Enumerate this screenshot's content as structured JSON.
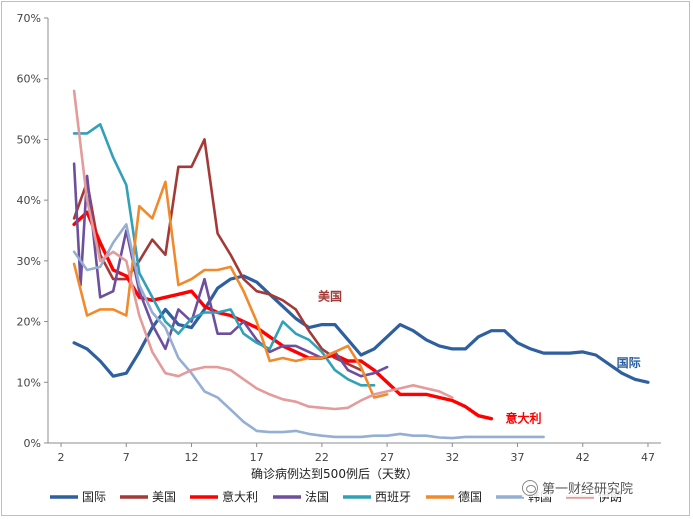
{
  "chart_data": {
    "type": "line",
    "title": "",
    "xlabel": "确诊病例达到500例后（天数）",
    "ylabel": "",
    "xlim": [
      1,
      48
    ],
    "ylim": [
      0,
      70
    ],
    "xticks": [
      2,
      7,
      12,
      17,
      22,
      27,
      32,
      37,
      42,
      47
    ],
    "yticks": [
      0,
      10,
      20,
      30,
      40,
      50,
      60,
      70
    ],
    "ytick_suffix": "%",
    "grid": false,
    "legend_position": "bottom",
    "series": [
      {
        "name": "国际",
        "color": "#2e5f9e",
        "width": 3.2,
        "label": "国际",
        "label_color": "#2e5f9e",
        "x": [
          3,
          4,
          5,
          6,
          7,
          8,
          9,
          10,
          11,
          12,
          13,
          14,
          15,
          16,
          17,
          18,
          19,
          20,
          21,
          22,
          23,
          24,
          25,
          26,
          27,
          28,
          29,
          30,
          31,
          32,
          33,
          34,
          35,
          36,
          37,
          38,
          39,
          40,
          41,
          42,
          43,
          44,
          45,
          46,
          47
        ],
        "y": [
          16.5,
          15.5,
          13.5,
          11,
          11.5,
          15,
          19,
          22,
          19.5,
          19,
          22,
          25.5,
          27,
          27.5,
          26.5,
          24.5,
          22.5,
          20.5,
          19,
          19.5,
          19.5,
          17,
          14.5,
          15.5,
          17.5,
          19.5,
          18.5,
          17,
          16,
          15.5,
          15.5,
          17.5,
          18.5,
          18.5,
          16.5,
          15.5,
          14.8,
          14.8,
          14.8,
          15,
          14.5,
          13,
          11.5,
          10.5,
          10
        ]
      },
      {
        "name": "美国",
        "color": "#a33a37",
        "width": 2.6,
        "label": "美国",
        "label_color": "#a33a37",
        "x": [
          3,
          4,
          5,
          6,
          7,
          8,
          9,
          10,
          11,
          12,
          13,
          14,
          15,
          16,
          17,
          18,
          19,
          20,
          21,
          22,
          23,
          24,
          25
        ],
        "y": [
          37,
          43,
          31,
          27,
          27,
          30,
          33.5,
          31,
          45.5,
          45.5,
          50,
          34.5,
          31,
          27,
          25,
          24.5,
          23.5,
          22,
          18.5,
          15.5,
          14,
          13,
          12
        ]
      },
      {
        "name": "意大利",
        "color": "#ff0000",
        "width": 3.4,
        "label": "意大利",
        "label_color": "#ff0000",
        "x": [
          3,
          4,
          5,
          6,
          7,
          8,
          9,
          10,
          11,
          12,
          13,
          14,
          15,
          16,
          17,
          18,
          19,
          20,
          21,
          22,
          23,
          24,
          25,
          26,
          27,
          28,
          29,
          30,
          31,
          32,
          33,
          34,
          35
        ],
        "y": [
          36,
          38,
          33,
          28.5,
          27.5,
          24,
          23.5,
          24,
          24.5,
          25,
          22.5,
          21.5,
          21,
          20,
          19,
          17.5,
          16,
          15,
          14,
          14,
          14.5,
          13.5,
          13.5,
          12,
          10,
          8,
          8,
          8,
          7.5,
          7,
          6,
          4.5,
          4
        ]
      },
      {
        "name": "法国",
        "color": "#6d4f9e",
        "width": 2.6,
        "label": null,
        "label_color": null,
        "x": [
          3,
          3.5,
          4,
          5,
          6,
          7,
          8,
          9,
          10,
          11,
          12,
          13,
          14,
          15,
          16,
          17,
          18,
          19,
          20,
          21,
          22,
          23,
          24,
          25,
          26,
          27
        ],
        "y": [
          46,
          26,
          44,
          24,
          25,
          35,
          25,
          19.5,
          15.5,
          22,
          20,
          27,
          18,
          18,
          20,
          17,
          15,
          16,
          16,
          15,
          14,
          15,
          12,
          11,
          11.5,
          12.5
        ]
      },
      {
        "name": "西班牙",
        "color": "#31a1b8",
        "width": 2.6,
        "label": null,
        "label_color": null,
        "x": [
          3,
          4,
          5,
          6,
          7,
          8,
          9,
          10,
          11,
          12,
          13,
          14,
          15,
          16,
          17,
          18,
          19,
          20,
          21,
          22,
          23,
          24,
          25,
          26
        ],
        "y": [
          51,
          51,
          52.5,
          47,
          42.5,
          28,
          24,
          20,
          18,
          20.5,
          21.5,
          21.5,
          22,
          18,
          16.5,
          15.5,
          20,
          18,
          17,
          15,
          12,
          10.5,
          9.5,
          9.5
        ]
      },
      {
        "name": "德国",
        "color": "#f08a2c",
        "width": 2.6,
        "label": null,
        "label_color": null,
        "x": [
          3,
          4,
          5,
          6,
          7,
          8,
          9,
          10,
          11,
          12,
          13,
          14,
          15,
          16,
          17,
          18,
          19,
          20,
          21,
          22,
          23,
          24,
          25,
          26,
          27
        ],
        "y": [
          29.5,
          21,
          22,
          22,
          21,
          39,
          37,
          43,
          26,
          27,
          28.5,
          28.5,
          29,
          25,
          20,
          13.5,
          14,
          13.5,
          14,
          14,
          15,
          16,
          12.5,
          7.5,
          8
        ]
      },
      {
        "name": "韩国",
        "color": "#95aed3",
        "width": 2.6,
        "label": null,
        "label_color": null,
        "x": [
          3,
          4,
          5,
          6,
          7,
          8,
          9,
          10,
          11,
          12,
          13,
          14,
          15,
          16,
          17,
          18,
          19,
          20,
          21,
          22,
          23,
          24,
          25,
          26,
          27,
          28,
          29,
          30,
          31,
          32,
          33,
          34,
          35,
          36,
          37,
          38,
          39
        ],
        "y": [
          31.5,
          28.5,
          29,
          33,
          36,
          26,
          21.5,
          19,
          14,
          11.5,
          8.5,
          7.5,
          5.5,
          3.5,
          2,
          1.8,
          1.8,
          2,
          1.5,
          1.2,
          1,
          1,
          1,
          1.2,
          1.2,
          1.5,
          1.2,
          1.2,
          0.9,
          0.8,
          1,
          1,
          1,
          1,
          1,
          1,
          1
        ]
      },
      {
        "name": "伊朗",
        "color": "#e39b9b",
        "width": 2.6,
        "label": null,
        "label_color": null,
        "x": [
          3,
          4,
          5,
          6,
          7,
          8,
          9,
          10,
          11,
          12,
          13,
          14,
          15,
          16,
          17,
          18,
          19,
          20,
          21,
          22,
          23,
          24,
          25,
          26,
          27,
          28,
          29,
          30,
          31,
          32
        ],
        "y": [
          58,
          40,
          30,
          31.5,
          30,
          21,
          15,
          11.5,
          11,
          12,
          12.5,
          12.5,
          12,
          10.5,
          9,
          8,
          7.2,
          6.8,
          6,
          5.8,
          5.6,
          5.8,
          7,
          8,
          8.5,
          9,
          9.5,
          9,
          8.5,
          7.5
        ]
      }
    ]
  },
  "watermark": {
    "text": "第一财经研究院",
    "icon": "wechat-icon"
  }
}
